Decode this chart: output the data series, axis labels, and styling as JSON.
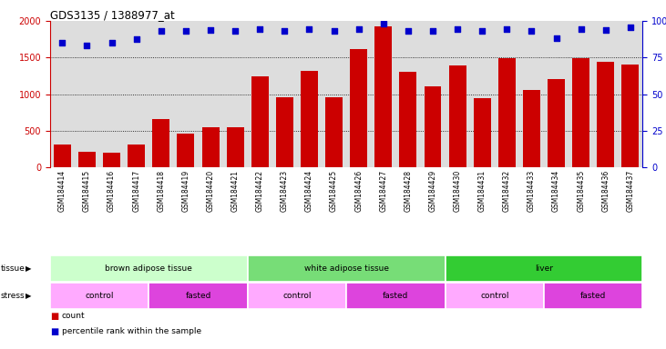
{
  "title": "GDS3135 / 1388977_at",
  "samples": [
    "GSM184414",
    "GSM184415",
    "GSM184416",
    "GSM184417",
    "GSM184418",
    "GSM184419",
    "GSM184420",
    "GSM184421",
    "GSM184422",
    "GSM184423",
    "GSM184424",
    "GSM184425",
    "GSM184426",
    "GSM184427",
    "GSM184428",
    "GSM184429",
    "GSM184430",
    "GSM184431",
    "GSM184432",
    "GSM184433",
    "GSM184434",
    "GSM184435",
    "GSM184436",
    "GSM184437"
  ],
  "counts": [
    310,
    220,
    200,
    320,
    660,
    460,
    550,
    550,
    1250,
    960,
    1320,
    960,
    1620,
    1930,
    1310,
    1110,
    1390,
    950,
    1490,
    1060,
    1210,
    1490,
    1440,
    1410
  ],
  "percentile_values": [
    1700,
    1665,
    1700,
    1750,
    1870,
    1870,
    1875,
    1870,
    1890,
    1870,
    1890,
    1870,
    1890,
    1960,
    1870,
    1870,
    1890,
    1870,
    1890,
    1870,
    1760,
    1890,
    1875,
    1910
  ],
  "ylim_left": [
    0,
    2000
  ],
  "ylim_right": [
    0,
    100
  ],
  "yticks_left": [
    0,
    500,
    1000,
    1500,
    2000
  ],
  "yticks_right": [
    0,
    25,
    50,
    75,
    100
  ],
  "bar_color": "#cc0000",
  "dot_color": "#0000cc",
  "tissue_groups": [
    {
      "label": "brown adipose tissue",
      "start": 0,
      "end": 8,
      "color": "#ccffcc"
    },
    {
      "label": "white adipose tissue",
      "start": 8,
      "end": 16,
      "color": "#77dd77"
    },
    {
      "label": "liver",
      "start": 16,
      "end": 24,
      "color": "#33cc33"
    }
  ],
  "stress_groups": [
    {
      "label": "control",
      "start": 0,
      "end": 4,
      "color": "#ffaaff"
    },
    {
      "label": "fasted",
      "start": 4,
      "end": 8,
      "color": "#dd44dd"
    },
    {
      "label": "control",
      "start": 8,
      "end": 12,
      "color": "#ffaaff"
    },
    {
      "label": "fasted",
      "start": 12,
      "end": 16,
      "color": "#dd44dd"
    },
    {
      "label": "control",
      "start": 16,
      "end": 20,
      "color": "#ffaaff"
    },
    {
      "label": "fasted",
      "start": 20,
      "end": 24,
      "color": "#dd44dd"
    }
  ],
  "plot_bg": "#dddddd",
  "grid_color": "#000000",
  "grid_style": ":",
  "grid_linewidth": 0.6
}
